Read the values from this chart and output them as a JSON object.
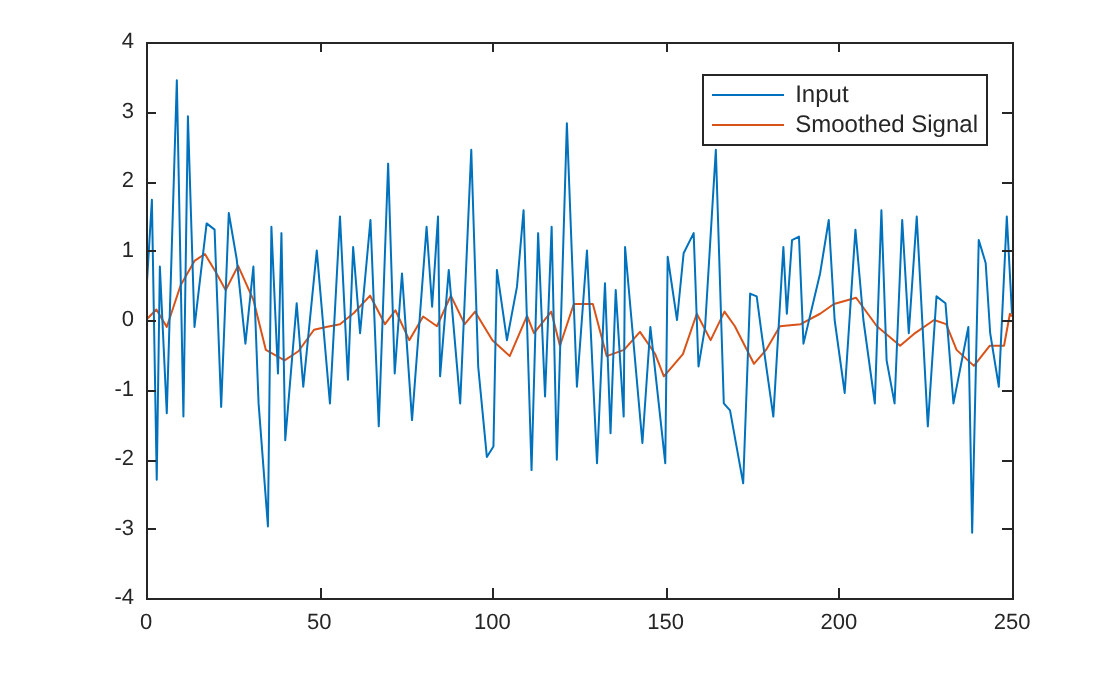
{
  "chart_data": {
    "type": "line",
    "xlim": [
      0,
      250
    ],
    "ylim": [
      -4,
      4
    ],
    "xticks": [
      0,
      50,
      100,
      150,
      200,
      250
    ],
    "yticks": [
      -4,
      -3,
      -2,
      -1,
      0,
      1,
      2,
      3,
      4
    ],
    "grid": false,
    "legend": "top right",
    "marker": "none",
    "line_style": "solid",
    "series": [
      {
        "name": "Input",
        "color": "#0072bd",
        "x": [
          0,
          0.2,
          1.7,
          3.1,
          4,
          6,
          8.9,
          10.8,
          12.1,
          14,
          17.5,
          19.8,
          21.7,
          23.9,
          26.2,
          28.7,
          31,
          32.5,
          35.2,
          36.2,
          38.1,
          39.1,
          40.2,
          43.5,
          45.4,
          49.3,
          53.1,
          56,
          58.3,
          59.8,
          61.8,
          64.8,
          67.2,
          69.9,
          71.8,
          73.9,
          76.8,
          81,
          82.6,
          84.3,
          84.9,
          87.4,
          90.7,
          93.9,
          95.9,
          98.4,
          100.3,
          101.3,
          104.2,
          107.1,
          109,
          111.3,
          113.2,
          115.2,
          117.1,
          118.6,
          121.5,
          124.4,
          127.3,
          130.2,
          132.5,
          134.1,
          135.6,
          137.9,
          138.3,
          143.3,
          145.6,
          149.9,
          150.6,
          153.3,
          155.2,
          158.1,
          159.5,
          161.4,
          164.5,
          166.8,
          168.6,
          172.4,
          174.4,
          176.3,
          177.7,
          181.1,
          184,
          185,
          186.5,
          188.5,
          189.8,
          194.6,
          197.1,
          198.8,
          201.7,
          204.8,
          207.1,
          210.4,
          212.3,
          213.8,
          216.1,
          218.3,
          220.2,
          222.5,
          225.7,
          228.2,
          230.8,
          233.1,
          237.4,
          238.5,
          240.4,
          242.4,
          243.7,
          246.2,
          248.5,
          250
        ],
        "values": [
          0,
          0.48,
          1.73,
          -2.3,
          0.77,
          -1.34,
          3.45,
          -1.39,
          2.93,
          -0.1,
          1.39,
          1.3,
          -1.25,
          1.54,
          0.87,
          -0.34,
          0.77,
          -1.2,
          -2.97,
          1.34,
          -0.77,
          1.25,
          -1.73,
          0.24,
          -0.96,
          1,
          -1.2,
          1.49,
          -0.86,
          1.05,
          -0.19,
          1.44,
          -1.53,
          2.25,
          -0.77,
          0.67,
          -1.44,
          1.34,
          0.19,
          1.49,
          -0.81,
          0.72,
          -1.2,
          2.45,
          -0.67,
          -1.97,
          -1.82,
          0.72,
          -0.29,
          0.48,
          1.58,
          -2.16,
          1.25,
          -1.1,
          1.34,
          -2.01,
          2.83,
          -0.96,
          1,
          -2.06,
          0.53,
          -1.63,
          0.43,
          -1.39,
          1.05,
          -1.77,
          -0.1,
          -2.06,
          0.91,
          0,
          0.96,
          1.25,
          -0.67,
          -0.1,
          2.45,
          -1.2,
          -1.3,
          -2.35,
          0.38,
          0.34,
          -0.19,
          -1.39,
          1.05,
          0.09,
          1.15,
          1.2,
          -0.34,
          0.67,
          1.44,
          0,
          -1.05,
          1.3,
          0,
          -1.2,
          1.58,
          -0.58,
          -1.2,
          1.44,
          -0.19,
          1.49,
          -1.53,
          0.34,
          0.24,
          -1.2,
          -0.1,
          -3.06,
          1.15,
          0.82,
          -0.19,
          -0.96,
          1.49,
          0.09
        ]
      },
      {
        "name": "Smoothed Signal",
        "color": "#d95319",
        "x": [
          0,
          3,
          6,
          10,
          14,
          17,
          20,
          23,
          26.6,
          31,
          34.6,
          40,
          44,
          48.5,
          52,
          56,
          60,
          64.7,
          69,
          72,
          76,
          80,
          84,
          88,
          92,
          95,
          100,
          105,
          110,
          112,
          117,
          119.5,
          123.5,
          129,
          133,
          138,
          142.6,
          147,
          149.5,
          155,
          159,
          163,
          167,
          170,
          175.5,
          179,
          183,
          189,
          194.6,
          198.6,
          205,
          211,
          217.7,
          221.7,
          227.5,
          231,
          234,
          239,
          243.6,
          247.7,
          249.4,
          250
        ],
        "values": [
          0,
          0.15,
          -0.1,
          0.5,
          0.85,
          0.95,
          0.7,
          0.43,
          0.78,
          0.29,
          -0.43,
          -0.58,
          -0.45,
          -0.14,
          -0.1,
          -0.06,
          0.1,
          0.35,
          -0.06,
          0.14,
          -0.29,
          0.05,
          -0.09,
          0.35,
          -0.06,
          0.12,
          -0.29,
          -0.52,
          0.06,
          -0.19,
          0.12,
          -0.37,
          0.23,
          0.23,
          -0.52,
          -0.43,
          -0.17,
          -0.49,
          -0.81,
          -0.49,
          0.09,
          -0.29,
          0.12,
          -0.09,
          -0.63,
          -0.43,
          -0.09,
          -0.06,
          0.09,
          0.23,
          0.32,
          -0.09,
          -0.37,
          -0.2,
          0,
          -0.06,
          -0.43,
          -0.66,
          -0.37,
          -0.37,
          0.09,
          0.05
        ]
      }
    ]
  }
}
